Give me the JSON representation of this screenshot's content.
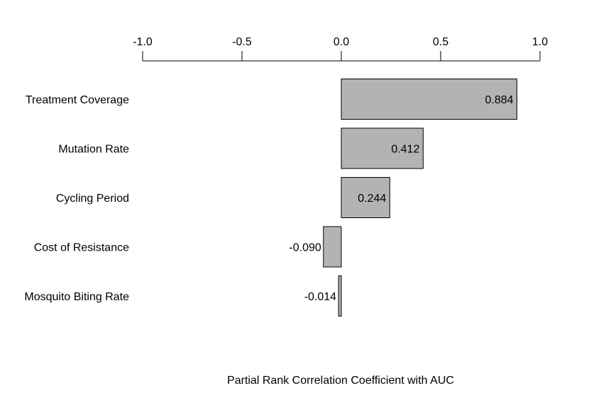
{
  "chart_data": {
    "type": "bar",
    "orientation": "horizontal",
    "categories": [
      "Treatment Coverage",
      "Mutation Rate",
      "Cycling Period",
      "Cost of Resistance",
      "Mosquito Biting Rate"
    ],
    "values": [
      0.884,
      0.412,
      0.244,
      -0.09,
      -0.014
    ],
    "value_labels": [
      "0.884",
      "0.412",
      "0.244",
      "-0.090",
      "-0.014"
    ],
    "xlabel": "Partial Rank Correlation Coefficient with AUC",
    "xlim": [
      -1.0,
      1.0
    ],
    "x_ticks": [
      -1.0,
      -0.5,
      0.0,
      0.5,
      1.0
    ],
    "x_tick_labels": [
      "-1.0",
      "-0.5",
      "0.0",
      "0.5",
      "1.0"
    ],
    "x_axis_position": "top",
    "grid": false,
    "legend": "none",
    "bar_color": "#b3b3b3",
    "bar_edge_color": "#000000"
  }
}
